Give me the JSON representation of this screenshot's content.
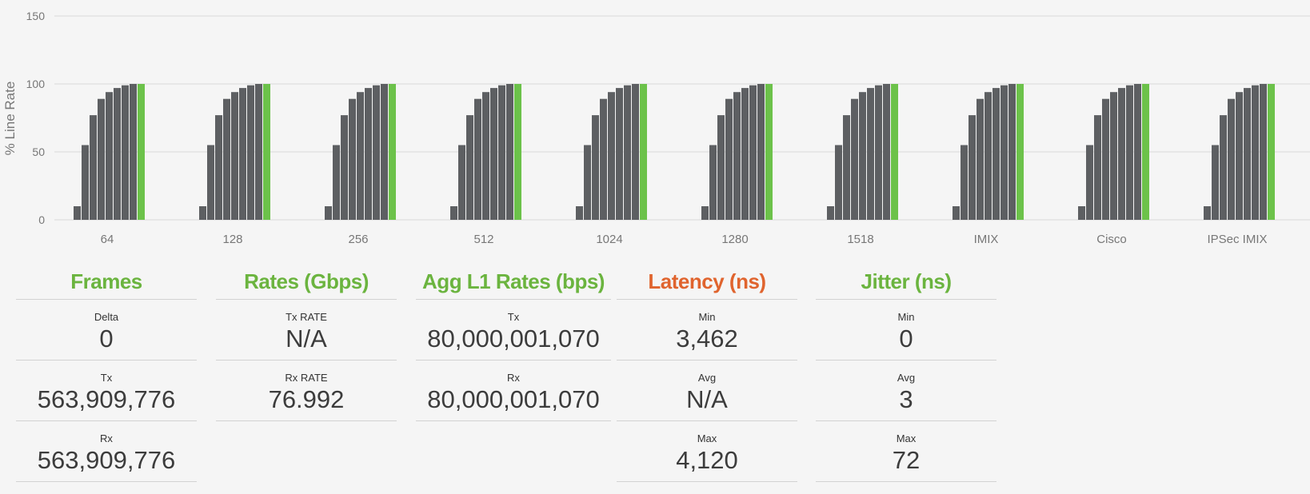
{
  "colors": {
    "bar": "#5d5f62",
    "highlight": "#6cc24a",
    "grid": "#d9d9d9",
    "axis_text": "#777777",
    "title_green": "#6bb43f",
    "title_orange": "#e0642e"
  },
  "chart_data": {
    "type": "bar",
    "ylabel": "% Line Rate",
    "xlabel": "",
    "ylim": [
      0,
      150
    ],
    "yticks": [
      0,
      50,
      100,
      150
    ],
    "categories": [
      "64",
      "128",
      "256",
      "512",
      "1024",
      "1280",
      "1518",
      "IMIX",
      "Cisco",
      "IPSec IMIX"
    ],
    "group_values": [
      10,
      55,
      77,
      89,
      94,
      97,
      99,
      100
    ],
    "group_values_highlight": [
      100
    ],
    "note": "Each category shows a group of 8 grey bars followed by one green bar; same values in every group"
  },
  "panels": [
    {
      "title": "Frames",
      "title_color": "green",
      "cells": [
        {
          "label": "Delta",
          "value": "0"
        },
        {
          "label": "Tx",
          "value": "563,909,776"
        },
        {
          "label": "Rx",
          "value": "563,909,776"
        }
      ]
    },
    {
      "title": "Rates (Gbps)",
      "title_color": "green",
      "cells": [
        {
          "label": "Tx RATE",
          "value": "N/A"
        },
        {
          "label": "Rx RATE",
          "value": "76.992"
        }
      ]
    },
    {
      "title": "Agg L1 Rates (bps)",
      "title_color": "green",
      "cells": [
        {
          "label": "Tx",
          "value": "80,000,001,070"
        },
        {
          "label": "Rx",
          "value": "80,000,001,070"
        }
      ]
    },
    {
      "title": "Latency (ns)",
      "title_color": "orange",
      "cells": [
        {
          "label": "Min",
          "value": "3,462"
        },
        {
          "label": "Avg",
          "value": "N/A"
        },
        {
          "label": "Max",
          "value": "4,120"
        }
      ]
    },
    {
      "title": "Jitter (ns)",
      "title_color": "green",
      "cells": [
        {
          "label": "Min",
          "value": "0"
        },
        {
          "label": "Avg",
          "value": "3"
        },
        {
          "label": "Max",
          "value": "72"
        }
      ]
    }
  ]
}
